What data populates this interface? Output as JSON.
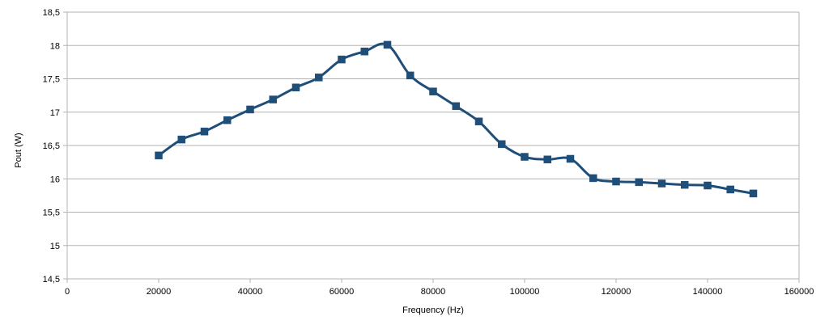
{
  "chart_data": {
    "type": "line",
    "title": "",
    "xlabel": "Frequency (Hz)",
    "ylabel": "Pout (W)",
    "xlim": [
      0,
      160000
    ],
    "ylim": [
      14.5,
      18.5
    ],
    "x_ticks": [
      "0",
      "20000",
      "40000",
      "60000",
      "80000",
      "100000",
      "120000",
      "140000",
      "160000"
    ],
    "y_ticks": [
      "14,5",
      "15",
      "15,5",
      "16",
      "16,5",
      "17",
      "17,5",
      "18",
      "18,5"
    ],
    "grid": true,
    "legend": "none",
    "series": [
      {
        "color": "#1f4e79",
        "marker": "square",
        "x": [
          20000,
          25000,
          30000,
          35000,
          40000,
          45000,
          50000,
          55000,
          60000,
          65000,
          70000,
          75000,
          80000,
          85000,
          90000,
          95000,
          100000,
          105000,
          110000,
          115000,
          120000,
          125000,
          130000,
          135000,
          140000,
          145000,
          150000
        ],
        "y": [
          16.35,
          16.59,
          16.71,
          16.88,
          17.04,
          17.19,
          17.37,
          17.52,
          17.79,
          17.91,
          18.01,
          17.55,
          17.31,
          17.09,
          16.86,
          16.52,
          16.33,
          16.29,
          16.3,
          16.01,
          15.96,
          15.95,
          15.93,
          15.91,
          15.9,
          15.84,
          15.78
        ]
      }
    ]
  }
}
